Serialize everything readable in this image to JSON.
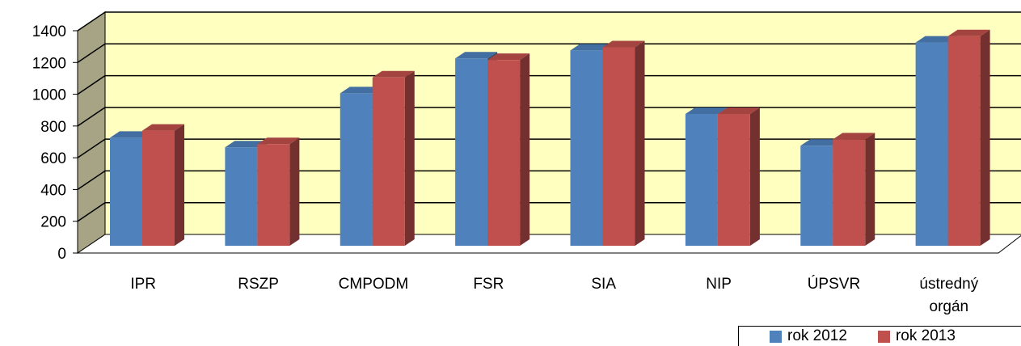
{
  "chart_data": {
    "type": "bar",
    "title": "",
    "xlabel": "",
    "ylabel": "",
    "categories": [
      "IPR",
      "RSZP",
      "CMPODM",
      "FSR",
      "SIA",
      "NIP",
      "ÚPSVR",
      "ústredný orgán"
    ],
    "series": [
      {
        "name": "rok 2012",
        "color": "#4F81BD",
        "values": [
          680,
          620,
          960,
          1180,
          1230,
          830,
          630,
          1280
        ]
      },
      {
        "name": "rok 2013",
        "color": "#C0504D",
        "values": [
          725,
          640,
          1060,
          1170,
          1250,
          830,
          670,
          1320
        ]
      }
    ],
    "ylim": [
      0,
      1400
    ],
    "yticks": [
      0,
      200,
      400,
      600,
      800,
      1000,
      1200,
      1400
    ],
    "grid": true,
    "legend_position": "bottom-right",
    "colors": {
      "wall": "#FFFFC0",
      "side_wall": "#A6A485",
      "floor": "#FFFFFF"
    }
  }
}
